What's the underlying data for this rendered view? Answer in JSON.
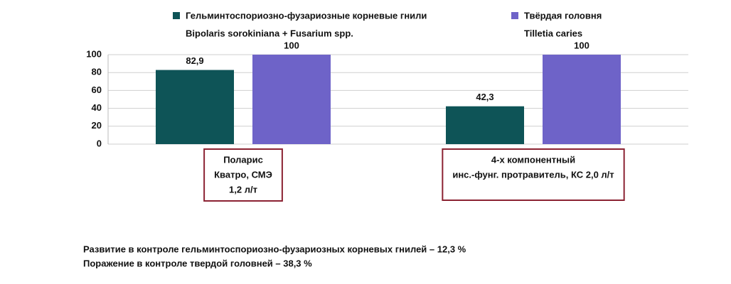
{
  "chart_data": {
    "type": "bar",
    "categories": [
      [
        "Поларис",
        "Кватро, СМЭ",
        "1,2 л/т"
      ],
      [
        "4-х компонентный",
        "инс.-фунг.  протравитель, КС 2,0 л/т"
      ]
    ],
    "series": [
      {
        "name": "Гельминтоспориозно-фузариозные корневые гнили",
        "subname": "Bipolaris sorokiniana + Fusarium spp.",
        "color": "#0e5457",
        "values": [
          82.9,
          42.3
        ],
        "value_labels": [
          "82,9",
          "42,3"
        ]
      },
      {
        "name": "Твёрдая головня",
        "subname": "Tilletia caries",
        "color": "#6e63c8",
        "values": [
          100,
          100
        ],
        "value_labels": [
          "100",
          "100"
        ]
      }
    ],
    "ylim": [
      0,
      100
    ],
    "yticks": [
      0,
      20,
      40,
      60,
      80,
      100
    ],
    "grid": true,
    "notes": [
      "Развитие в контроле гельминтоспориозно-фузариозных корневых гнилей – 12,3 %",
      "Поражение в контроле твердой головней – 38,3 %"
    ]
  }
}
